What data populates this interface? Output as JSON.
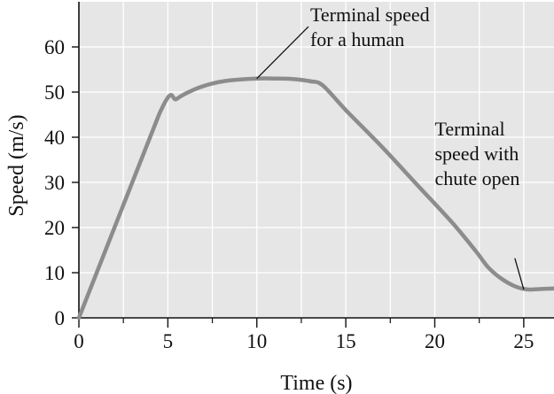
{
  "chart_data": {
    "type": "line",
    "xlabel": "Time (s)",
    "ylabel": "Speed (m/s)",
    "xlim": [
      0,
      26.7
    ],
    "ylim": [
      0,
      70
    ],
    "x_ticks": [
      0,
      5,
      10,
      15,
      20,
      25
    ],
    "y_ticks": [
      0,
      10,
      20,
      30,
      40,
      50,
      60
    ],
    "x_tick_labels": [
      "0",
      "5",
      "10",
      "15",
      "20",
      "25"
    ],
    "y_tick_labels": [
      "0",
      "10",
      "20",
      "30",
      "40",
      "50",
      "60"
    ],
    "grid": true,
    "x_minor_ticks": [
      2.5,
      7.5,
      12.5,
      17.5,
      22.5
    ],
    "series": [
      {
        "color": "#8c8c8c",
        "points": [
          [
            0,
            0
          ],
          [
            4.5,
            45
          ],
          [
            5.5,
            48.5
          ],
          [
            6.5,
            50.6
          ],
          [
            7.5,
            51.9
          ],
          [
            8.5,
            52.6
          ],
          [
            10,
            53
          ],
          [
            11,
            53
          ],
          [
            12,
            52.9
          ],
          [
            13,
            52.4
          ],
          [
            13.7,
            51.5
          ],
          [
            15,
            46
          ],
          [
            17,
            38
          ],
          [
            19,
            29.5
          ],
          [
            21,
            21
          ],
          [
            22.3,
            14.8
          ],
          [
            23,
            11.2
          ],
          [
            23.7,
            8.8
          ],
          [
            24.5,
            7
          ],
          [
            25.2,
            6.3
          ],
          [
            26,
            6.4
          ],
          [
            26.7,
            6.5
          ]
        ]
      }
    ],
    "annotations": [
      {
        "lines": [
          "Terminal speed",
          "for a human"
        ],
        "point": [
          10,
          53
        ],
        "text_at": [
          13,
          65.7
        ],
        "leader_from": [
          12.9,
          64.5
        ]
      },
      {
        "lines": [
          "Terminal",
          "speed with",
          "chute open"
        ],
        "point": [
          25,
          6.3
        ],
        "text_at": [
          20,
          40.4
        ],
        "leader_from": [
          24.5,
          13.2
        ]
      }
    ],
    "colors": {
      "plot_background": "#e6e6e6",
      "grid": "#ffffff",
      "axes": "#111111",
      "curve": "#8c8c8c",
      "leader": "#111111"
    }
  }
}
